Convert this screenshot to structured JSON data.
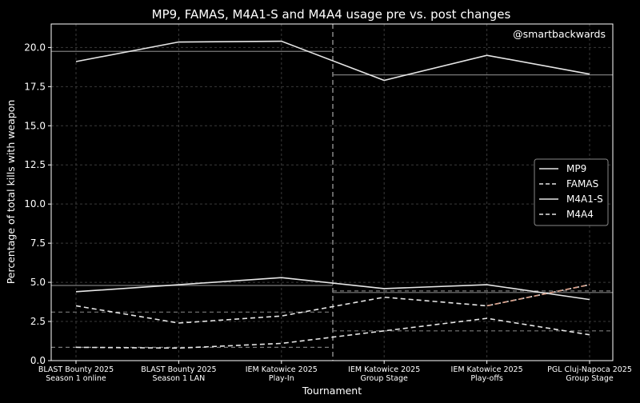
{
  "chart_data": {
    "type": "line",
    "title": "MP9, FAMAS, M4A1-S and M4A4 usage pre vs. post changes",
    "watermark": "@smartbackwards",
    "xlabel": "Tournament",
    "ylabel": "Percentage of total kills with weapon",
    "ylim": [
      0,
      21.5
    ],
    "yticks": [
      "0.0",
      "2.5",
      "5.0",
      "7.5",
      "10.0",
      "12.5",
      "15.0",
      "17.5",
      "20.0"
    ],
    "ytick_values": [
      0,
      2.5,
      5,
      7.5,
      10,
      12.5,
      15,
      17.5,
      20
    ],
    "grid": true,
    "legend_position": "center-right",
    "categories": [
      [
        "BLAST Bounty 2025",
        "Season 1 online"
      ],
      [
        "BLAST Bounty 2025",
        "Season 1 LAN"
      ],
      [
        "IEM Katowice 2025",
        "Play-In"
      ],
      [
        "IEM Katowice 2025",
        "Group Stage"
      ],
      [
        "IEM Katowice 2025",
        "Play-offs"
      ],
      [
        "PGL Cluj-Napoca 2025",
        "Group Stage"
      ]
    ],
    "change_after_index": 2.5,
    "series": [
      {
        "name": "MP9",
        "style": "solid",
        "values": [
          19.1,
          20.35,
          20.4,
          17.9,
          19.5,
          18.3
        ],
        "pre_avg": 19.75,
        "post_avg": 18.25
      },
      {
        "name": "FAMAS",
        "style": "dashed",
        "values": [
          0.85,
          0.8,
          1.1,
          1.9,
          2.7,
          1.65
        ],
        "pre_avg": 0.85,
        "post_avg": 1.9
      },
      {
        "name": "M4A1-S",
        "style": "solid",
        "values": [
          4.4,
          4.85,
          5.3,
          4.6,
          4.85,
          3.9
        ],
        "pre_avg": 4.8,
        "post_avg": 4.35
      },
      {
        "name": "M4A4",
        "style": "dashed",
        "values": [
          3.5,
          2.4,
          2.85,
          4.05,
          3.5,
          4.85
        ],
        "pre_avg": 3.1,
        "post_avg": 4.45
      }
    ],
    "colors": {
      "background": "#000000",
      "grid": "#3a3a3a",
      "line": "#e6e6e6",
      "avg": "#7a7a7a",
      "axis": "#ffffff",
      "m4a4_tail": "#d9a08a"
    }
  }
}
